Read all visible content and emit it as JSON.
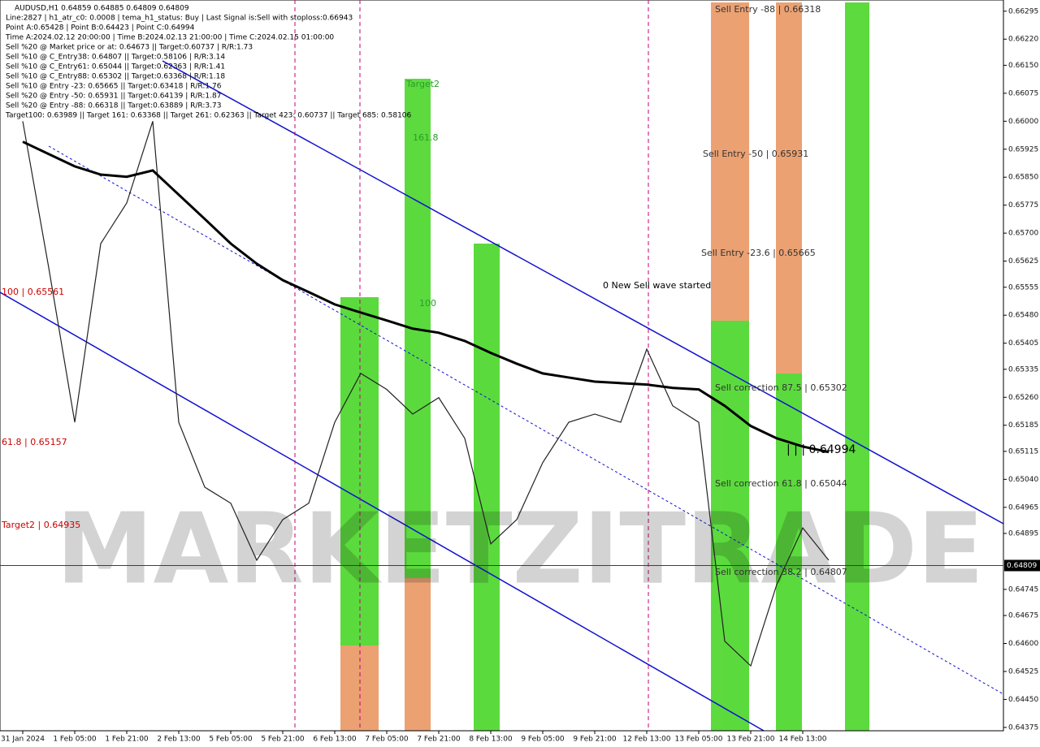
{
  "chart_data": {
    "type": "line",
    "header": [
      "AUDUSD,H1  0.64859 0.64885 0.64809 0.64809",
      "Line:2827 | h1_atr_c0: 0.0008 | tema_h1_status: Buy | Last Signal is:Sell with stoploss:0.66943",
      "Point A:0.65428 | Point B:0.64423 | Point C:0.64994",
      "Time A:2024.02.12 20:00:00 | Time B:2024.02.13 21:00:00 | Time C:2024.02.15 01:00:00",
      "Sell %20 @ Market price or at: 0.64673 || Target:0.60737 | R/R:1.73",
      "Sell %10 @ C_Entry38: 0.64807 || Target:0.58106 | R/R:3.14",
      "Sell %10 @ C_Entry61: 0.65044 || Target:0.62363 | R/R:1.41",
      "Sell %10 @ C_Entry88: 0.65302 || Target:0.63368 | R/R:1.18",
      "Sell %10 @ Entry -23: 0.65665 || Target:0.63418 | R/R:1.76",
      "Sell %20 @ Entry -50: 0.65931 || Target:0.64139 | R/R:1.87",
      "Sell %20 @ Entry -88: 0.66318 || Target:0.63889 | R/R:3.73",
      "Target100: 0.63989 || Target 161: 0.63368 || Target 261: 0.62363 || Target 423: 0.60737 || Target 685: 0.58106"
    ],
    "watermark": "MARKETZITRADE",
    "annotations": [
      {
        "text": "Sell Entry -88 | 0.66318",
        "color": "#333333"
      },
      {
        "text": "Sell Entry -50 | 0.65931",
        "color": "#333333"
      },
      {
        "text": "Sell Entry -23.6 | 0.65665",
        "color": "#333333"
      },
      {
        "text": "0 New Sell wave started",
        "color": "#000000"
      },
      {
        "text": "Sell correction 87.5 | 0.65302",
        "color": "#333333"
      },
      {
        "text": "Sell correction 61.8 | 0.65044",
        "color": "#333333"
      },
      {
        "text": "Sell correction 38.2 | 0.64807",
        "color": "#333333"
      },
      {
        "text": "| | | 0.64994",
        "color": "#000000"
      },
      {
        "text": "100 | 0.65561",
        "color": "#cc0000"
      },
      {
        "text": "61.8 | 0.65157",
        "color": "#cc0000"
      },
      {
        "text": "Target2 | 0.64935",
        "color": "#cc0000"
      },
      {
        "text": "Target2",
        "color": "#2a9d2a"
      },
      {
        "text": "161.8",
        "color": "#2a9d2a"
      },
      {
        "text": "100",
        "color": "#2a9d2a"
      }
    ],
    "categories": [
      "31 Jan 2024",
      null,
      "1 Feb 05:00",
      null,
      "1 Feb 21:00",
      null,
      "2 Feb 13:00",
      null,
      "5 Feb 05:00",
      null,
      "5 Feb 21:00",
      null,
      "6 Feb 13:00",
      null,
      "7 Feb 05:00",
      null,
      "7 Feb 21:00",
      null,
      "8 Feb 13:00",
      null,
      "9 Feb 05:00",
      null,
      "9 Feb 21:00",
      null,
      "12 Feb 13:00",
      null,
      "13 Feb 05:00",
      null,
      "13 Feb 21:00",
      null,
      "14 Feb 13:00",
      null
    ],
    "series": [
      {
        "color": "#222222",
        "values": [
          0.66,
          0.65607,
          0.65193,
          0.65672,
          0.65781,
          0.66,
          0.65193,
          0.65019,
          0.64976,
          0.64823,
          0.64932,
          0.64976,
          0.65193,
          0.65324,
          0.65281,
          0.65215,
          0.65259,
          0.6515,
          0.64867,
          0.64932,
          0.65085,
          0.65193,
          0.65215,
          0.65193,
          0.65389,
          0.65237,
          0.65193,
          0.64606,
          0.6454,
          0.64758,
          0.6491,
          0.64823
        ]
      },
      {
        "color": "#000000",
        "values": [
          0.65945,
          0.65912,
          0.65879,
          0.65857,
          0.65851,
          0.65868,
          0.65803,
          0.65738,
          0.65672,
          0.65618,
          0.65574,
          0.65542,
          0.65509,
          0.65487,
          0.65466,
          0.65444,
          0.65433,
          0.65411,
          0.65379,
          0.6535,
          0.65324,
          0.65313,
          0.65302,
          0.65298,
          0.65294,
          0.65285,
          0.65281,
          0.65237,
          0.65183,
          0.6515,
          0.65128,
          0.65113
        ]
      }
    ],
    "last_price": 0.64809,
    "last_price_color": "#cc0000",
    "ylim": [
      0.64366,
      0.66325
    ],
    "yticks": [
      0.66295,
      {
        "value": 0.6622,
        "label": "0.66220"
      },
      {
        "value": 0.6615,
        "label": "0.66150"
      },
      0.66075,
      {
        "value": 0.66,
        "label": "0.66000"
      },
      0.65925,
      {
        "value": 0.6585,
        "label": "0.65850"
      },
      0.65775,
      {
        "value": 0.657,
        "label": "0.65700"
      },
      0.65625,
      0.65555,
      {
        "value": 0.6548,
        "label": "0.65480"
      },
      0.65405,
      0.65335,
      {
        "value": 0.6526,
        "label": "0.65260"
      },
      0.65185,
      0.65115,
      {
        "value": 0.6504,
        "label": "0.65040"
      },
      0.64965,
      0.64895,
      0.64745,
      0.64675,
      {
        "value": 0.646,
        "label": "0.64600"
      },
      0.64525,
      {
        "value": 0.6445,
        "label": "0.64450"
      },
      0.64375
    ]
  }
}
